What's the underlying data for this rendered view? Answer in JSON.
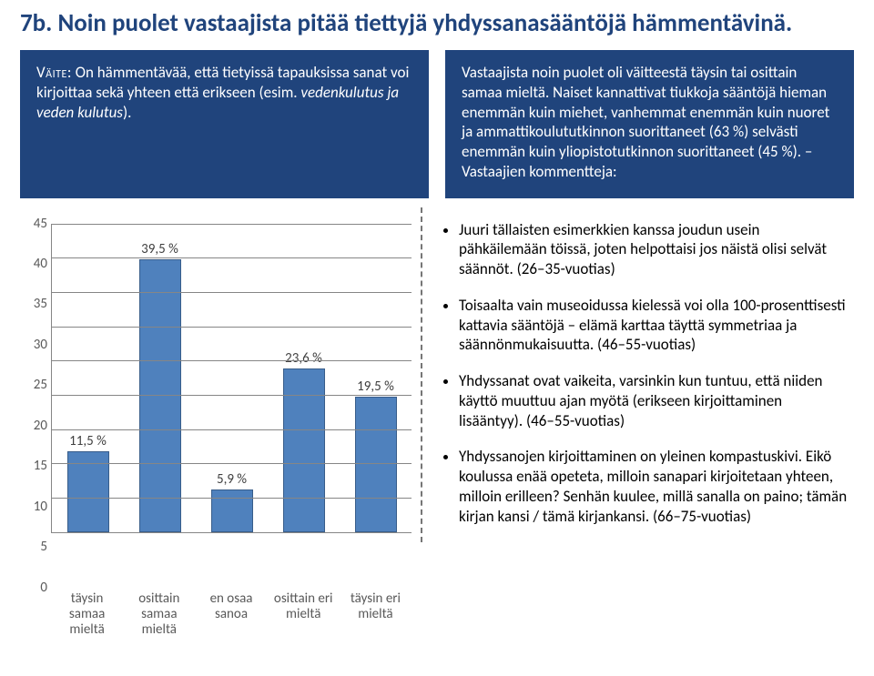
{
  "title": "7b. Noin puolet vastaajista pitää tiettyjä yhdyssanasääntöjä hämmentävinä.",
  "panel_left": {
    "label": "Väite:",
    "body_prefix": " On hämmentävää, että tietyissä tapauksissa sanat voi kirjoittaa sekä yhteen että erikseen (esim. ",
    "italic": "vedenkulutus ja veden kulutus",
    "body_suffix": ")."
  },
  "panel_right": "Vastaajista noin puolet oli väitteestä täysin tai osittain samaa mieltä. Naiset kannattivat tiukkoja sääntöjä hieman enemmän kuin miehet, vanhemmat enemmän kuin nuoret ja ammattikoulututkinnon suorittaneet (63 %) selvästi enemmän kuin yliopistotutkinnon suorittaneet (45 %). – Vastaajien kommentteja:",
  "chart": {
    "type": "bar",
    "ymax": 45,
    "ystep": 5,
    "bar_color": "#4f81bd",
    "bar_border": "#385d8a",
    "categories": [
      {
        "label_top": "11,5 %",
        "value": 11.5,
        "x1": "täysin",
        "x2": "samaa",
        "x3": "mieltä"
      },
      {
        "label_top": "39,5 %",
        "value": 39.5,
        "x1": "osittain",
        "x2": "samaa",
        "x3": "mieltä"
      },
      {
        "label_top": "5,9 %",
        "value": 5.9,
        "x1": "en osaa",
        "x2": "sanoa",
        "x3": ""
      },
      {
        "label_top": "23,6 %",
        "value": 23.6,
        "x1": "osittain eri",
        "x2": "mieltä",
        "x3": ""
      },
      {
        "label_top": "19,5 %",
        "value": 19.5,
        "x1": "täysin eri",
        "x2": "mieltä",
        "x3": ""
      }
    ]
  },
  "comments": [
    "Juuri tällaisten esimerkkien kanssa joudun usein pähkäilemään töissä, joten helpottaisi jos näistä olisi selvät säännöt. (26–35-vuotias)",
    "Toisaalta vain museoidussa kielessä voi olla 100-prosenttisesti kattavia sääntöjä – elämä karttaa täyttä symmetriaa ja säännönmukaisuutta. (46–55-vuotias)",
    "Yhdyssanat ovat vaikeita, varsinkin kun tuntuu, että niiden käyttö muuttuu ajan myötä (erikseen kirjoittaminen lisääntyy). (46–55-vuotias)",
    "Yhdyssanojen kirjoittaminen on yleinen kompastuskivi. Eikö koulussa enää opeteta, milloin sanapari kirjoitetaan yhteen, milloin erilleen? Senhän kuulee, millä sanalla on paino; tämän kirjan kansi / tämä kirjankansi. (66–75-vuotias)"
  ]
}
